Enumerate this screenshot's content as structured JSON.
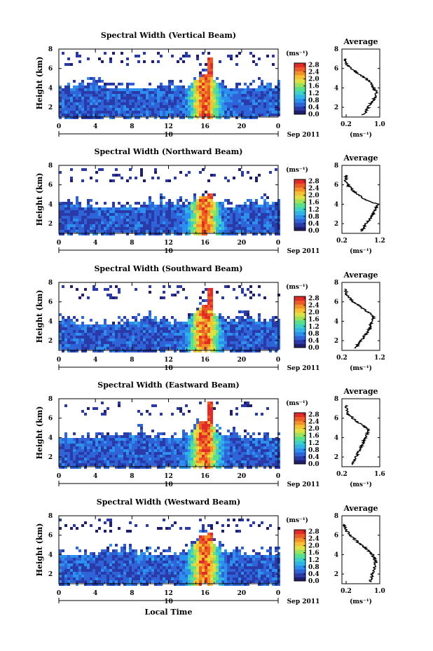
{
  "x_axis_label": "Local Time",
  "date_label": "Sep 2011",
  "colorbar_unit": "(ms⁻¹)",
  "profile_title": "Average",
  "profile_xlabel": "(ms⁻¹)",
  "colors": {
    "scale": [
      "#1f1f6e",
      "#2a3aa8",
      "#2f64d8",
      "#2b90ee",
      "#2fb6e6",
      "#3cd2c4",
      "#58e08a",
      "#9ee25a",
      "#e0e040",
      "#f7c030",
      "#f39028",
      "#ec5a26",
      "#e42a28"
    ]
  },
  "chart_data": [
    {
      "type": "heatmap",
      "title": "Spectral Width (Vertical Beam)",
      "xlabel": "",
      "ylabel": "Height (km)",
      "x_ticks": [
        "0",
        "4",
        "8",
        "12",
        "16",
        "20",
        "0"
      ],
      "day_marker": "10",
      "xlim": [
        0,
        24
      ],
      "ylim": [
        1,
        8
      ],
      "y_ticks": [
        "2",
        "4",
        "6",
        "8"
      ],
      "colorbar_ticks": [
        "0.0",
        "0.4",
        "0.8",
        "1.2",
        "1.6",
        "2.0",
        "2.4",
        "2.8"
      ],
      "colorbar_range": [
        0,
        2.9
      ],
      "features": {
        "layer_top": 4.0,
        "convection_center_hour": 15.8,
        "convection_top": 5.5,
        "tower_top": 7.4
      },
      "profile": {
        "xlim": [
          0.1,
          1.0
        ],
        "x_ticks": [
          "0.2",
          "1.0"
        ],
        "y_ticks": [
          "2",
          "4",
          "6",
          "8"
        ],
        "height": [
          1.2,
          1.6,
          2.0,
          2.4,
          2.8,
          3.2,
          3.6,
          4.0,
          4.4,
          4.8,
          5.2,
          5.6,
          6.0,
          6.4,
          6.8,
          7.0
        ],
        "value": [
          0.6,
          0.68,
          0.73,
          0.78,
          0.86,
          0.9,
          0.92,
          0.85,
          0.8,
          0.72,
          0.6,
          0.45,
          0.32,
          0.22,
          0.16,
          0.18
        ]
      }
    },
    {
      "type": "heatmap",
      "title": "Spectral Width (Northward Beam)",
      "xlabel": "",
      "ylabel": "Height (km)",
      "x_ticks": [
        "0",
        "4",
        "8",
        "12",
        "16",
        "20",
        "0"
      ],
      "day_marker": "10",
      "xlim": [
        0,
        24
      ],
      "ylim": [
        1,
        8
      ],
      "y_ticks": [
        "2",
        "4",
        "6",
        "8"
      ],
      "colorbar_ticks": [
        "0.0",
        "0.4",
        "0.8",
        "1.2",
        "1.6",
        "2.0",
        "2.4",
        "2.8"
      ],
      "colorbar_range": [
        0,
        2.9
      ],
      "features": {
        "layer_top": 3.8,
        "convection_center_hour": 15.8,
        "convection_top": 5.0,
        "tower_top": 5.2
      },
      "profile": {
        "xlim": [
          0.2,
          1.2
        ],
        "x_ticks": [
          "0.2",
          "1.2"
        ],
        "y_ticks": [
          "2",
          "4",
          "6",
          "8"
        ],
        "height": [
          1.2,
          1.6,
          2.0,
          2.4,
          2.8,
          3.2,
          3.6,
          4.0,
          4.4,
          4.8,
          5.2,
          5.6,
          6.0,
          6.4,
          6.8,
          7.0
        ],
        "value": [
          0.7,
          0.78,
          0.85,
          0.92,
          1.0,
          1.05,
          1.1,
          1.15,
          0.85,
          0.7,
          0.55,
          0.45,
          0.35,
          0.3,
          0.32,
          0.3
        ]
      }
    },
    {
      "type": "heatmap",
      "title": "Spectral Width (Southward Beam)",
      "xlabel": "",
      "ylabel": "Height (km)",
      "x_ticks": [
        "0",
        "4",
        "8",
        "12",
        "16",
        "20",
        "0"
      ],
      "day_marker": "10",
      "xlim": [
        0,
        24
      ],
      "ylim": [
        1,
        8
      ],
      "y_ticks": [
        "2",
        "4",
        "6",
        "8"
      ],
      "colorbar_ticks": [
        "0.0",
        "0.4",
        "0.8",
        "1.2",
        "1.6",
        "2.0",
        "2.4",
        "2.8"
      ],
      "colorbar_range": [
        0,
        2.9
      ],
      "features": {
        "layer_top": 3.9,
        "convection_center_hour": 15.8,
        "convection_top": 5.8,
        "tower_top": 7.6
      },
      "profile": {
        "xlim": [
          0.2,
          1.2
        ],
        "x_ticks": [
          "0.2",
          "1.2"
        ],
        "y_ticks": [
          "2",
          "4",
          "6",
          "8"
        ],
        "height": [
          1.2,
          1.6,
          2.0,
          2.4,
          2.8,
          3.2,
          3.6,
          4.0,
          4.4,
          4.8,
          5.2,
          5.6,
          6.0,
          6.4,
          6.8,
          7.4
        ],
        "value": [
          0.55,
          0.62,
          0.7,
          0.78,
          0.86,
          0.92,
          0.95,
          1.0,
          1.05,
          0.95,
          0.8,
          0.65,
          0.5,
          0.4,
          0.32,
          0.28
        ]
      }
    },
    {
      "type": "heatmap",
      "title": "Spectral Width (Eastward Beam)",
      "xlabel": "",
      "ylabel": "Height (km)",
      "x_ticks": [
        "0",
        "4",
        "8",
        "12",
        "16",
        "20",
        "0"
      ],
      "day_marker": "10",
      "xlim": [
        0,
        24
      ],
      "ylim": [
        1,
        8
      ],
      "y_ticks": [
        "2",
        "4",
        "6",
        "8"
      ],
      "colorbar_ticks": [
        "0.0",
        "0.4",
        "0.8",
        "1.2",
        "1.6",
        "2.0",
        "2.4",
        "2.8"
      ],
      "colorbar_range": [
        0,
        2.9
      ],
      "features": {
        "layer_top": 4.0,
        "convection_center_hour": 15.8,
        "convection_top": 6.0,
        "tower_top": 7.8
      },
      "profile": {
        "xlim": [
          0.2,
          1.6
        ],
        "x_ticks": [
          "0.2",
          "1.6"
        ],
        "y_ticks": [
          "2",
          "4",
          "6",
          "8"
        ],
        "height": [
          1.2,
          1.6,
          2.0,
          2.4,
          2.8,
          3.2,
          3.6,
          4.0,
          4.4,
          4.8,
          5.2,
          5.6,
          6.0,
          6.4,
          6.8,
          7.4
        ],
        "value": [
          0.6,
          0.66,
          0.72,
          0.8,
          0.88,
          0.95,
          1.0,
          1.05,
          1.15,
          1.2,
          1.0,
          0.8,
          0.6,
          0.45,
          0.38,
          0.35
        ]
      }
    },
    {
      "type": "heatmap",
      "title": "Spectral Width (Westward Beam)",
      "xlabel": "Local Time",
      "ylabel": "Height (km)",
      "x_ticks": [
        "0",
        "4",
        "8",
        "12",
        "16",
        "20",
        "0"
      ],
      "day_marker": "10",
      "xlim": [
        0,
        24
      ],
      "ylim": [
        1,
        8
      ],
      "y_ticks": [
        "2",
        "4",
        "6",
        "8"
      ],
      "colorbar_ticks": [
        "0.0",
        "0.4",
        "0.8",
        "1.2",
        "1.6",
        "2.0",
        "2.4",
        "2.8"
      ],
      "colorbar_range": [
        0,
        2.9
      ],
      "features": {
        "layer_top": 4.2,
        "convection_center_hour": 15.8,
        "convection_top": 6.2,
        "tower_top": 6.4
      },
      "profile": {
        "xlim": [
          0.1,
          1.0
        ],
        "x_ticks": [
          "0.2",
          "1.0"
        ],
        "y_ticks": [
          "2",
          "4",
          "6",
          "8"
        ],
        "height": [
          1.2,
          1.6,
          2.0,
          2.4,
          2.8,
          3.2,
          3.6,
          4.0,
          4.4,
          4.8,
          5.2,
          5.6,
          6.0,
          6.4,
          6.8,
          7.2
        ],
        "value": [
          0.78,
          0.8,
          0.82,
          0.85,
          0.88,
          0.9,
          0.88,
          0.82,
          0.72,
          0.62,
          0.5,
          0.4,
          0.3,
          0.22,
          0.18,
          0.12
        ]
      }
    }
  ]
}
